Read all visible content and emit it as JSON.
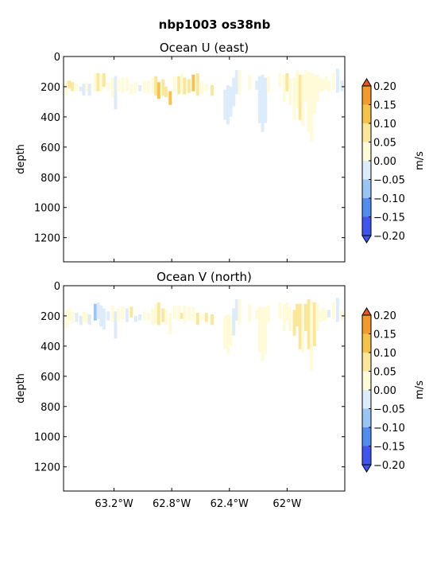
{
  "chart_data": {
    "suptitle": "nbp1003 os38nb",
    "type": "heatmap",
    "shared": {
      "xlabel": "",
      "ylabel": "depth",
      "xlim": [
        -63.55,
        -61.6
      ],
      "ylim": [
        1360,
        0
      ],
      "x_ticks": [
        -63.2,
        -62.8,
        -62.4,
        -62.0
      ],
      "x_tick_labels": [
        "63.2°W",
        "62.8°W",
        "62.4°W",
        "62°W"
      ],
      "y_ticks": [
        0,
        200,
        400,
        600,
        800,
        1000,
        1200
      ],
      "y_tick_labels": [
        "0",
        "200",
        "400",
        "600",
        "800",
        "1000",
        "1200"
      ],
      "colorbar": {
        "label": "m/s",
        "levels": [
          -0.2,
          -0.15,
          -0.1,
          -0.05,
          0.0,
          0.05,
          0.1,
          0.15,
          0.2
        ],
        "level_labels": [
          "−0.20",
          "−0.15",
          "−0.10",
          "−0.05",
          "0.00",
          "0.05",
          "0.10",
          "0.15",
          "0.20"
        ],
        "colors": [
          "#3f55f0",
          "#4f8df2",
          "#99c6f4",
          "#dcecfb",
          "#fffad8",
          "#fbe79a",
          "#f7c24a",
          "#f29a2e",
          "#e8551e"
        ],
        "extend": "both"
      }
    },
    "panels": [
      {
        "title": "Ocean U (east)",
        "cells": [
          [
            -63.53,
            160,
            260,
            0.02
          ],
          [
            -63.51,
            160,
            210,
            0.07
          ],
          [
            -63.49,
            170,
            230,
            0.06
          ],
          [
            -63.46,
            180,
            230,
            0.02
          ],
          [
            -63.43,
            200,
            230,
            -0.02
          ],
          [
            -63.41,
            180,
            260,
            -0.03
          ],
          [
            -63.39,
            170,
            230,
            0.01
          ],
          [
            -63.37,
            180,
            260,
            -0.02
          ],
          [
            -63.33,
            110,
            230,
            0.04
          ],
          [
            -63.31,
            110,
            230,
            0.06
          ],
          [
            -63.29,
            120,
            230,
            0.03
          ],
          [
            -63.27,
            110,
            200,
            0.06
          ],
          [
            -63.24,
            170,
            220,
            0.02
          ],
          [
            -63.21,
            140,
            270,
            0.02
          ],
          [
            -63.19,
            130,
            350,
            -0.03
          ],
          [
            -63.17,
            150,
            230,
            0.02
          ],
          [
            -63.14,
            140,
            240,
            0.03
          ],
          [
            -63.11,
            140,
            230,
            0.04
          ],
          [
            -63.08,
            180,
            250,
            0.03
          ],
          [
            -63.05,
            170,
            240,
            0.01
          ],
          [
            -63.02,
            190,
            230,
            -0.02
          ],
          [
            -62.99,
            160,
            240,
            0.02
          ],
          [
            -62.96,
            160,
            240,
            0.03
          ],
          [
            -62.93,
            140,
            250,
            0.04
          ],
          [
            -62.91,
            130,
            260,
            0.09
          ],
          [
            -62.89,
            170,
            280,
            0.12
          ],
          [
            -62.86,
            150,
            260,
            0.06
          ],
          [
            -62.84,
            200,
            270,
            0.07
          ],
          [
            -62.81,
            230,
            320,
            0.12
          ],
          [
            -62.78,
            130,
            230,
            0.04
          ],
          [
            -62.75,
            130,
            250,
            0.05
          ],
          [
            -62.73,
            110,
            250,
            0.04
          ],
          [
            -62.71,
            140,
            250,
            0.06
          ],
          [
            -62.68,
            150,
            240,
            0.08
          ],
          [
            -62.65,
            120,
            230,
            0.11
          ],
          [
            -62.62,
            110,
            260,
            0.06
          ],
          [
            -62.59,
            170,
            250,
            0.02
          ],
          [
            -62.56,
            180,
            230,
            0.03
          ],
          [
            -62.52,
            190,
            260,
            0.05
          ],
          [
            -62.43,
            220,
            420,
            -0.04
          ],
          [
            -62.41,
            190,
            450,
            -0.03
          ],
          [
            -62.39,
            200,
            400,
            -0.03
          ],
          [
            -62.37,
            140,
            330,
            -0.03
          ],
          [
            -62.35,
            90,
            250,
            -0.03
          ],
          [
            -62.33,
            90,
            250,
            0.02
          ],
          [
            -62.26,
            120,
            220,
            0.03
          ],
          [
            -62.21,
            160,
            220,
            -0.02
          ],
          [
            -62.19,
            130,
            440,
            -0.03
          ],
          [
            -62.17,
            120,
            500,
            -0.04
          ],
          [
            -62.15,
            140,
            440,
            -0.02
          ],
          [
            -62.13,
            130,
            240,
            0.01
          ],
          [
            -62.05,
            110,
            200,
            0.02
          ],
          [
            -62.02,
            120,
            300,
            0.04
          ],
          [
            -62.0,
            110,
            230,
            0.07
          ],
          [
            -61.98,
            140,
            320,
            0.02
          ],
          [
            -61.95,
            140,
            420,
            0.03
          ],
          [
            -61.93,
            90,
            340,
            0.04
          ],
          [
            -61.91,
            120,
            420,
            0.05
          ],
          [
            -61.89,
            120,
            460,
            0.03
          ],
          [
            -61.87,
            90,
            300,
            0.04
          ],
          [
            -61.85,
            100,
            500,
            0.03
          ],
          [
            -61.83,
            110,
            560,
            0.02
          ],
          [
            -61.81,
            120,
            380,
            0.03
          ],
          [
            -61.79,
            120,
            300,
            0.02
          ],
          [
            -61.77,
            140,
            230,
            0.02
          ],
          [
            -61.75,
            150,
            230,
            0.02
          ],
          [
            -61.73,
            130,
            220,
            0.02
          ],
          [
            -61.71,
            160,
            230,
            0.01
          ],
          [
            -61.68,
            110,
            220,
            0.01
          ],
          [
            -61.65,
            80,
            240,
            -0.02
          ],
          [
            -61.62,
            160,
            230,
            -0.01
          ]
        ]
      },
      {
        "title": "Ocean V (north)",
        "cells": [
          [
            -63.53,
            160,
            280,
            0.02
          ],
          [
            -63.51,
            150,
            230,
            0.03
          ],
          [
            -63.49,
            170,
            250,
            0.01
          ],
          [
            -63.46,
            180,
            240,
            -0.02
          ],
          [
            -63.43,
            200,
            260,
            -0.03
          ],
          [
            -63.41,
            170,
            240,
            0.02
          ],
          [
            -63.39,
            180,
            250,
            0.01
          ],
          [
            -63.37,
            190,
            260,
            -0.02
          ],
          [
            -63.33,
            120,
            230,
            -0.06
          ],
          [
            -63.31,
            110,
            220,
            -0.03
          ],
          [
            -63.29,
            130,
            270,
            -0.02
          ],
          [
            -63.27,
            150,
            290,
            -0.02
          ],
          [
            -63.24,
            170,
            230,
            -0.03
          ],
          [
            -63.21,
            130,
            240,
            0.02
          ],
          [
            -63.19,
            170,
            350,
            -0.02
          ],
          [
            -63.17,
            150,
            240,
            0.03
          ],
          [
            -63.14,
            140,
            220,
            0.04
          ],
          [
            -63.11,
            150,
            240,
            -0.02
          ],
          [
            -63.08,
            140,
            210,
            0.06
          ],
          [
            -63.05,
            200,
            240,
            -0.03
          ],
          [
            -63.02,
            190,
            230,
            -0.02
          ],
          [
            -62.99,
            170,
            230,
            0.02
          ],
          [
            -62.96,
            180,
            230,
            0.01
          ],
          [
            -62.93,
            150,
            260,
            0.03
          ],
          [
            -62.91,
            120,
            250,
            0.04
          ],
          [
            -62.89,
            110,
            260,
            0.08
          ],
          [
            -62.86,
            150,
            240,
            0.05
          ],
          [
            -62.84,
            160,
            260,
            0.03
          ],
          [
            -62.81,
            180,
            320,
            0.04
          ],
          [
            -62.78,
            130,
            220,
            0.02
          ],
          [
            -62.75,
            130,
            230,
            0.02
          ],
          [
            -62.73,
            180,
            220,
            0.07
          ],
          [
            -62.71,
            130,
            250,
            0.03
          ],
          [
            -62.68,
            140,
            230,
            0.02
          ],
          [
            -62.65,
            140,
            240,
            0.03
          ],
          [
            -62.62,
            180,
            260,
            0.08
          ],
          [
            -62.59,
            190,
            230,
            0.03
          ],
          [
            -62.56,
            180,
            240,
            0.05
          ],
          [
            -62.52,
            190,
            260,
            0.06
          ],
          [
            -62.43,
            200,
            420,
            0.03
          ],
          [
            -62.41,
            190,
            450,
            0.03
          ],
          [
            -62.39,
            200,
            400,
            0.02
          ],
          [
            -62.37,
            150,
            330,
            -0.02
          ],
          [
            -62.35,
            90,
            230,
            -0.02
          ],
          [
            -62.33,
            90,
            260,
            0.01
          ],
          [
            -62.26,
            120,
            240,
            0.02
          ],
          [
            -62.21,
            160,
            220,
            0.02
          ],
          [
            -62.19,
            140,
            440,
            0.03
          ],
          [
            -62.17,
            140,
            500,
            0.04
          ],
          [
            -62.15,
            140,
            450,
            0.02
          ],
          [
            -62.13,
            130,
            240,
            0.01
          ],
          [
            -62.05,
            110,
            220,
            0.02
          ],
          [
            -62.02,
            120,
            300,
            0.01
          ],
          [
            -62.0,
            110,
            230,
            0.02
          ],
          [
            -61.98,
            140,
            300,
            0.03
          ],
          [
            -61.95,
            160,
            330,
            0.06
          ],
          [
            -61.93,
            120,
            270,
            0.05
          ],
          [
            -61.91,
            120,
            420,
            0.06
          ],
          [
            -61.89,
            120,
            440,
            0.03
          ],
          [
            -61.87,
            120,
            300,
            0.07
          ],
          [
            -61.85,
            90,
            420,
            0.08
          ],
          [
            -61.83,
            100,
            560,
            0.02
          ],
          [
            -61.81,
            110,
            400,
            0.06
          ],
          [
            -61.79,
            120,
            300,
            0.02
          ],
          [
            -61.77,
            170,
            240,
            0.03
          ],
          [
            -61.75,
            150,
            230,
            0.02
          ],
          [
            -61.73,
            160,
            230,
            0.01
          ],
          [
            -61.71,
            160,
            210,
            -0.02
          ],
          [
            -61.68,
            110,
            220,
            0.02
          ],
          [
            -61.65,
            80,
            240,
            -0.01
          ],
          [
            -61.62,
            160,
            230,
            0.01
          ]
        ]
      }
    ]
  }
}
